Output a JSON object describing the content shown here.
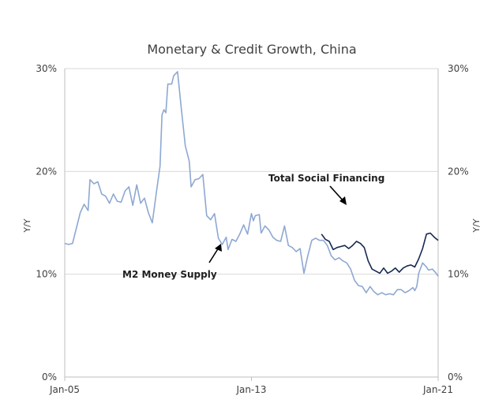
{
  "chart_data": {
    "type": "line",
    "title": "Monetary & Credit Growth, China",
    "ylabel_left": "Y/Y",
    "ylabel_right": "Y/Y",
    "ylim": [
      0,
      30
    ],
    "y_ticks": [
      0,
      10,
      20,
      30
    ],
    "y_tick_labels": [
      "0%",
      "10%",
      "20%",
      "30%"
    ],
    "x_range": [
      "2005-01",
      "2021-01"
    ],
    "x_ticks": [
      "2005-01",
      "2013-01",
      "2021-01"
    ],
    "x_tick_labels": [
      "Jan-05",
      "Jan-13",
      "Jan-21"
    ],
    "grid": "horizontal",
    "colors": {
      "m2": "#8ea8d2",
      "tsf": "#15294f",
      "grid": "#d9d9d9",
      "axis": "#bfbfbf",
      "arrow": "#000000"
    },
    "series": [
      {
        "name": "M2 Money Supply",
        "color": "#8ea8d2",
        "points": [
          [
            "2005-01",
            13.0
          ],
          [
            "2005-03",
            12.9
          ],
          [
            "2005-05",
            13.0
          ],
          [
            "2005-07",
            14.5
          ],
          [
            "2005-09",
            16.0
          ],
          [
            "2005-11",
            16.8
          ],
          [
            "2006-01",
            16.2
          ],
          [
            "2006-02",
            19.2
          ],
          [
            "2006-04",
            18.8
          ],
          [
            "2006-06",
            19.0
          ],
          [
            "2006-08",
            17.8
          ],
          [
            "2006-10",
            17.6
          ],
          [
            "2006-12",
            16.9
          ],
          [
            "2007-02",
            17.8
          ],
          [
            "2007-04",
            17.1
          ],
          [
            "2007-06",
            17.0
          ],
          [
            "2007-08",
            18.1
          ],
          [
            "2007-10",
            18.5
          ],
          [
            "2007-12",
            16.7
          ],
          [
            "2008-02",
            18.7
          ],
          [
            "2008-04",
            16.9
          ],
          [
            "2008-06",
            17.4
          ],
          [
            "2008-08",
            16.0
          ],
          [
            "2008-10",
            15.0
          ],
          [
            "2008-12",
            17.8
          ],
          [
            "2009-02",
            20.5
          ],
          [
            "2009-03",
            25.5
          ],
          [
            "2009-04",
            26.0
          ],
          [
            "2009-05",
            25.7
          ],
          [
            "2009-06",
            28.5
          ],
          [
            "2009-08",
            28.5
          ],
          [
            "2009-09",
            29.3
          ],
          [
            "2009-11",
            29.7
          ],
          [
            "2010-01",
            26.0
          ],
          [
            "2010-03",
            22.5
          ],
          [
            "2010-05",
            21.0
          ],
          [
            "2010-06",
            18.5
          ],
          [
            "2010-08",
            19.2
          ],
          [
            "2010-10",
            19.3
          ],
          [
            "2010-12",
            19.7
          ],
          [
            "2011-02",
            15.7
          ],
          [
            "2011-04",
            15.3
          ],
          [
            "2011-06",
            15.9
          ],
          [
            "2011-08",
            13.5
          ],
          [
            "2011-10",
            12.9
          ],
          [
            "2011-12",
            13.6
          ],
          [
            "2012-01",
            12.4
          ],
          [
            "2012-03",
            13.4
          ],
          [
            "2012-05",
            13.2
          ],
          [
            "2012-07",
            13.9
          ],
          [
            "2012-09",
            14.8
          ],
          [
            "2012-11",
            13.9
          ],
          [
            "2013-01",
            15.9
          ],
          [
            "2013-02",
            15.2
          ],
          [
            "2013-03",
            15.7
          ],
          [
            "2013-05",
            15.8
          ],
          [
            "2013-06",
            14.0
          ],
          [
            "2013-08",
            14.7
          ],
          [
            "2013-10",
            14.3
          ],
          [
            "2013-12",
            13.6
          ],
          [
            "2014-02",
            13.3
          ],
          [
            "2014-04",
            13.2
          ],
          [
            "2014-06",
            14.7
          ],
          [
            "2014-08",
            12.8
          ],
          [
            "2014-10",
            12.6
          ],
          [
            "2014-12",
            12.2
          ],
          [
            "2015-02",
            12.5
          ],
          [
            "2015-04",
            10.1
          ],
          [
            "2015-06",
            11.8
          ],
          [
            "2015-08",
            13.3
          ],
          [
            "2015-10",
            13.5
          ],
          [
            "2015-12",
            13.3
          ],
          [
            "2016-02",
            13.3
          ],
          [
            "2016-04",
            12.8
          ],
          [
            "2016-06",
            11.8
          ],
          [
            "2016-08",
            11.4
          ],
          [
            "2016-10",
            11.6
          ],
          [
            "2016-12",
            11.3
          ],
          [
            "2017-02",
            11.1
          ],
          [
            "2017-04",
            10.5
          ],
          [
            "2017-06",
            9.4
          ],
          [
            "2017-08",
            8.9
          ],
          [
            "2017-10",
            8.8
          ],
          [
            "2017-12",
            8.2
          ],
          [
            "2018-02",
            8.8
          ],
          [
            "2018-04",
            8.3
          ],
          [
            "2018-06",
            8.0
          ],
          [
            "2018-08",
            8.2
          ],
          [
            "2018-10",
            8.0
          ],
          [
            "2018-12",
            8.1
          ],
          [
            "2019-02",
            8.0
          ],
          [
            "2019-04",
            8.5
          ],
          [
            "2019-06",
            8.5
          ],
          [
            "2019-08",
            8.2
          ],
          [
            "2019-10",
            8.4
          ],
          [
            "2019-12",
            8.7
          ],
          [
            "2020-01",
            8.4
          ],
          [
            "2020-02",
            8.8
          ],
          [
            "2020-03",
            10.1
          ],
          [
            "2020-05",
            11.1
          ],
          [
            "2020-07",
            10.7
          ],
          [
            "2020-08",
            10.4
          ],
          [
            "2020-10",
            10.5
          ],
          [
            "2020-12",
            10.1
          ],
          [
            "2021-01",
            9.8
          ]
        ]
      },
      {
        "name": "Total Social Financing",
        "color": "#15294f",
        "points": [
          [
            "2016-01",
            13.9
          ],
          [
            "2016-03",
            13.4
          ],
          [
            "2016-05",
            13.2
          ],
          [
            "2016-07",
            12.4
          ],
          [
            "2016-09",
            12.6
          ],
          [
            "2016-11",
            12.7
          ],
          [
            "2017-01",
            12.8
          ],
          [
            "2017-03",
            12.5
          ],
          [
            "2017-05",
            12.8
          ],
          [
            "2017-07",
            13.2
          ],
          [
            "2017-09",
            13.0
          ],
          [
            "2017-11",
            12.6
          ],
          [
            "2018-01",
            11.3
          ],
          [
            "2018-03",
            10.5
          ],
          [
            "2018-05",
            10.3
          ],
          [
            "2018-07",
            10.1
          ],
          [
            "2018-09",
            10.6
          ],
          [
            "2018-11",
            10.1
          ],
          [
            "2019-01",
            10.3
          ],
          [
            "2019-03",
            10.6
          ],
          [
            "2019-05",
            10.2
          ],
          [
            "2019-07",
            10.6
          ],
          [
            "2019-09",
            10.8
          ],
          [
            "2019-11",
            10.9
          ],
          [
            "2020-01",
            10.7
          ],
          [
            "2020-03",
            11.5
          ],
          [
            "2020-05",
            12.5
          ],
          [
            "2020-07",
            13.9
          ],
          [
            "2020-09",
            14.0
          ],
          [
            "2020-11",
            13.6
          ],
          [
            "2021-01",
            13.3
          ]
        ]
      }
    ],
    "annotations": [
      {
        "text": "Total Social Financing",
        "series": "Total Social Financing"
      },
      {
        "text": "M2 Money Supply",
        "series": "M2 Money Supply"
      }
    ]
  }
}
